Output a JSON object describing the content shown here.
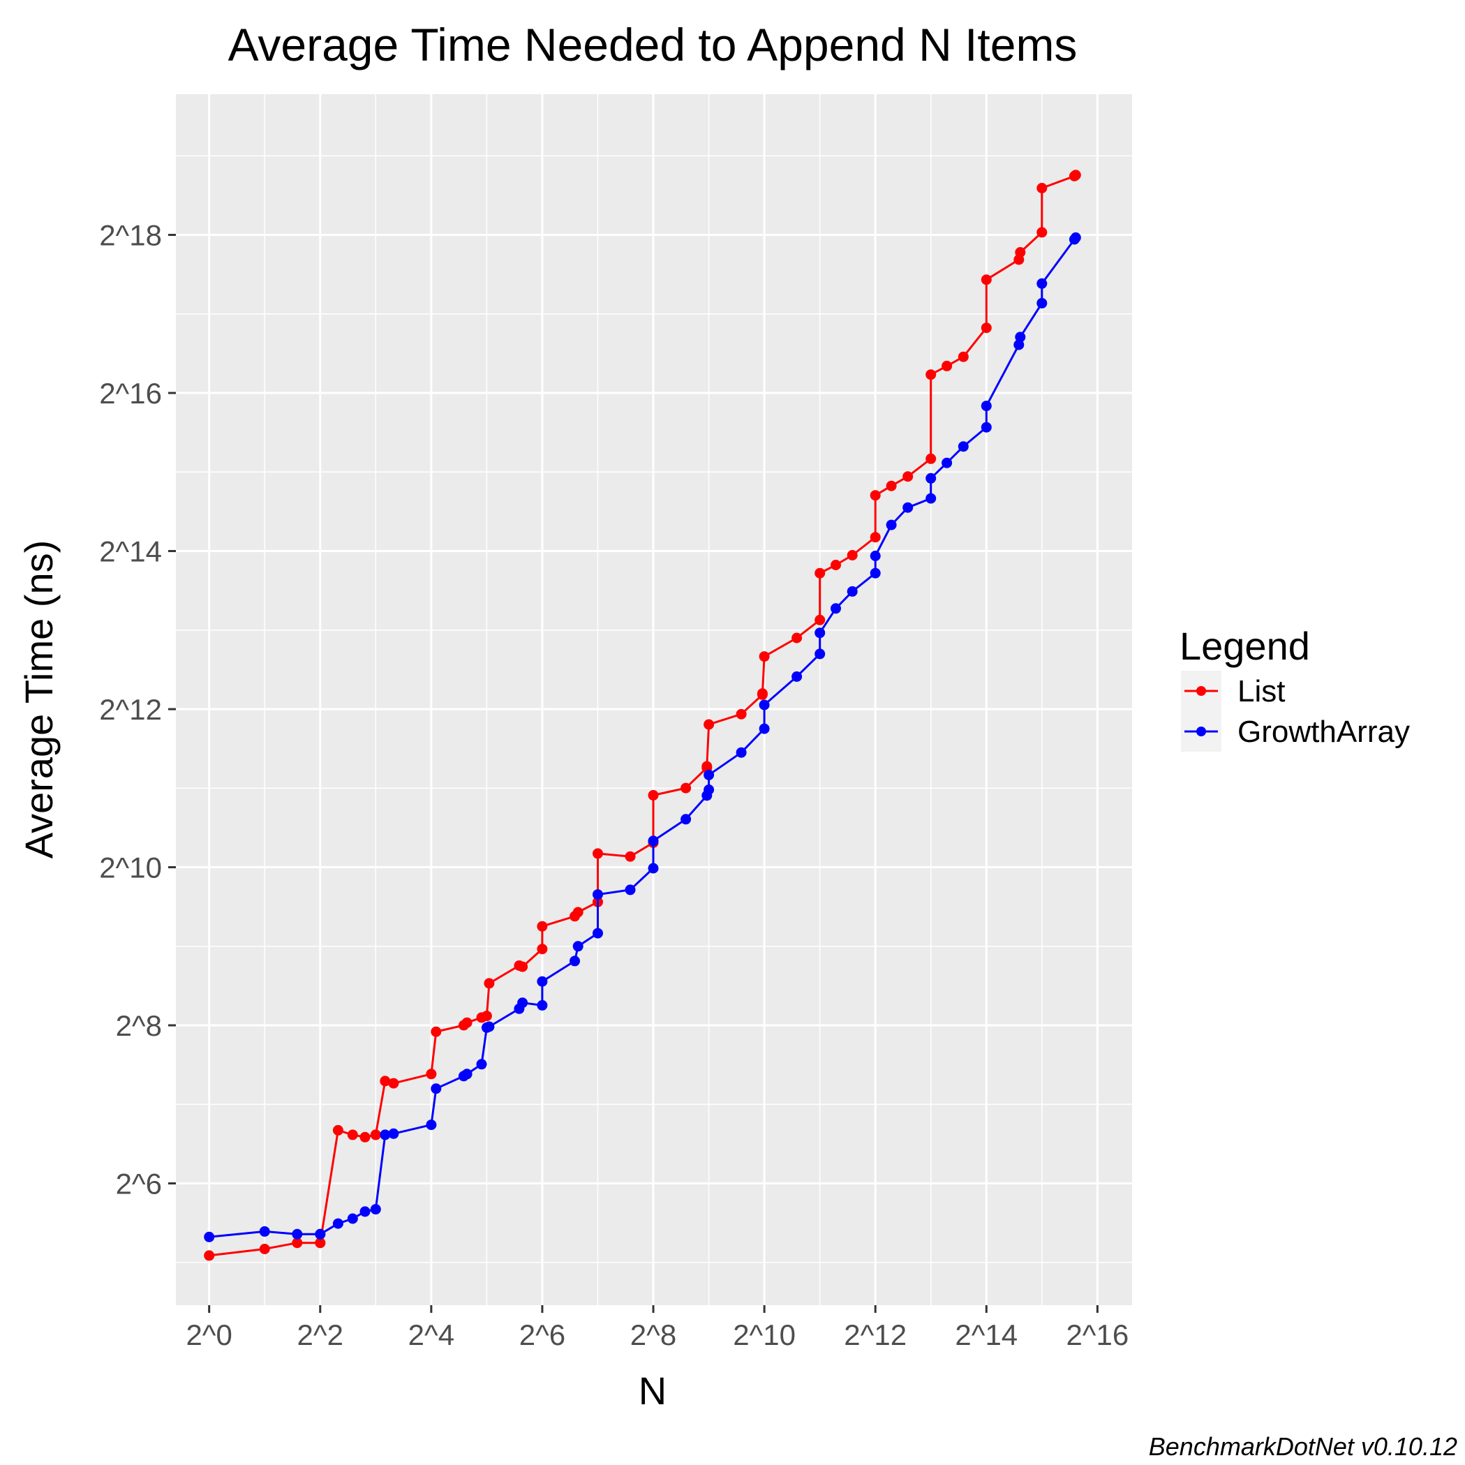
{
  "chart_data": {
    "type": "line",
    "title": "Average Time Needed to Append N Items",
    "xlabel": "N",
    "ylabel": "Average Time (ns)",
    "x_scale": "log2",
    "y_scale": "log2",
    "x_tick_values": [
      1,
      4,
      16,
      64,
      256,
      1024,
      4096,
      16384,
      65536
    ],
    "x_tick_labels": [
      "2^0",
      "2^2",
      "2^4",
      "2^6",
      "2^8",
      "2^10",
      "2^12",
      "2^14",
      "2^16"
    ],
    "y_tick_values": [
      64,
      256,
      1024,
      4096,
      16384,
      65536,
      262144
    ],
    "y_tick_labels": [
      "2^6",
      "2^8",
      "2^10",
      "2^12",
      "2^14",
      "2^16",
      "2^18"
    ],
    "xlim": [
      0.66,
      101000
    ],
    "ylim": [
      22,
      900000
    ],
    "grid": true,
    "legend_title": "Legend",
    "legend_position": "right",
    "caption": "BenchmarkDotNet v0.10.12",
    "series": [
      {
        "name": "List",
        "color": "#ff0000",
        "x": [
          1,
          2,
          3,
          4,
          4,
          5,
          6,
          7,
          8,
          8,
          9,
          10,
          16,
          17,
          24,
          25,
          30,
          32,
          33,
          48,
          50,
          64,
          64,
          96,
          100,
          128,
          128,
          192,
          256,
          256,
          384,
          500,
          500,
          512,
          768,
          1000,
          1000,
          1024,
          1536,
          2048,
          2048,
          2500,
          3072,
          4096,
          4096,
          5000,
          6144,
          8192,
          8192,
          10000,
          12288,
          16384,
          16384,
          24576,
          25000,
          32768,
          32768,
          49152,
          50000
        ],
        "y": [
          34,
          36,
          38,
          38,
          38,
          102,
          98,
          96,
          98,
          98,
          157,
          154,
          167,
          242,
          256,
          262,
          274,
          278,
          370,
          432,
          428,
          500,
          610,
          666,
          690,
          755,
          1155,
          1125,
          1270,
          1925,
          2050,
          2450,
          2480,
          3580,
          3920,
          4650,
          4700,
          6500,
          7650,
          8950,
          13500,
          14500,
          15800,
          18500,
          26700,
          29000,
          31500,
          36800,
          77000,
          83000,
          90000,
          116000,
          177000,
          211000,
          225000,
          268000,
          395000,
          439000,
          443000
        ]
      },
      {
        "name": "GrowthArray",
        "color": "#0000ff",
        "x": [
          1,
          2,
          3,
          4,
          4,
          5,
          6,
          7,
          8,
          9,
          10,
          16,
          17,
          24,
          25,
          30,
          32,
          33,
          48,
          50,
          64,
          64,
          96,
          100,
          128,
          128,
          192,
          256,
          256,
          384,
          500,
          512,
          512,
          768,
          1024,
          1024,
          1536,
          2048,
          2048,
          2500,
          3072,
          4096,
          4096,
          5000,
          6144,
          8192,
          8192,
          10000,
          12288,
          16384,
          16384,
          24576,
          25000,
          32768,
          32768,
          49152,
          50000
        ],
        "y": [
          40,
          42,
          41,
          41,
          41,
          45,
          47,
          50,
          51,
          98,
          99,
          107,
          147,
          164,
          167,
          182,
          251,
          253,
          296,
          312,
          305,
          376,
          450,
          512,
          574,
          806,
          840,
          1015,
          1290,
          1560,
          1920,
          2020,
          2300,
          2800,
          3450,
          4250,
          5450,
          6650,
          8000,
          9900,
          11500,
          13500,
          15700,
          20600,
          24000,
          26000,
          31000,
          35500,
          41000,
          48500,
          58500,
          100000,
          107000,
          144000,
          171000,
          252000,
          256000
        ]
      }
    ]
  }
}
